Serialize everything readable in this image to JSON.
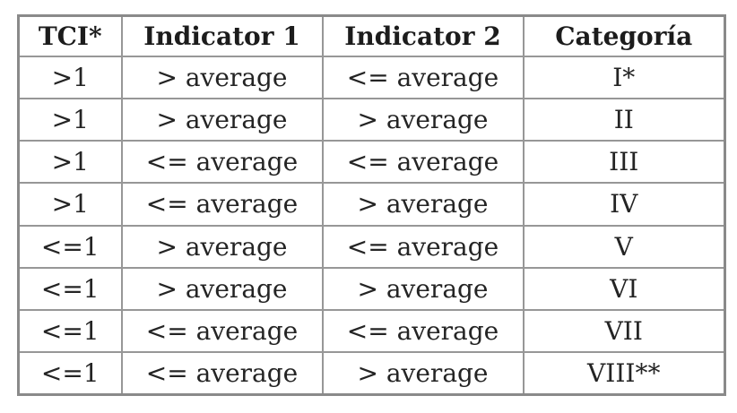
{
  "table": {
    "columns": [
      "TCI*",
      "Indicator 1",
      "Indicator 2",
      "Categoría"
    ],
    "rows": [
      [
        ">1",
        "> average",
        "<= average",
        "I*"
      ],
      [
        ">1",
        "> average",
        "> average",
        "II"
      ],
      [
        ">1",
        "<= average",
        "<= average",
        "III"
      ],
      [
        ">1",
        "<= average",
        "> average",
        "IV"
      ],
      [
        "<=1",
        "> average",
        "<= average",
        "V"
      ],
      [
        "<=1",
        "> average",
        "> average",
        "VI"
      ],
      [
        "<=1",
        "<= average",
        "<= average",
        "VII"
      ],
      [
        "<=1",
        "<= average",
        "> average",
        "VIII**"
      ]
    ]
  }
}
